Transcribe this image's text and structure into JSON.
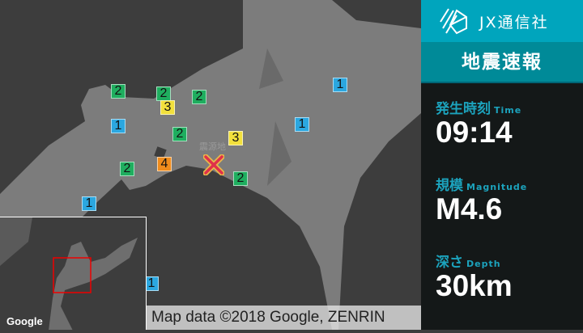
{
  "map": {
    "epicenter_label": "震源地",
    "attribution": "Map data ©2018 Google, ZENRIN",
    "google_logo": "Google",
    "intensity_colors": {
      "1": "#2ba7e0",
      "2": "#1fae5f",
      "3": "#f2e03c",
      "4": "#f08c1c"
    },
    "markers": [
      {
        "value": "2"
      },
      {
        "value": "2"
      },
      {
        "value": "3"
      },
      {
        "value": "2"
      },
      {
        "value": "1"
      },
      {
        "value": "1"
      },
      {
        "value": "2"
      },
      {
        "value": "3"
      },
      {
        "value": "1"
      },
      {
        "value": "4"
      },
      {
        "value": "2"
      },
      {
        "value": "2"
      },
      {
        "value": "1"
      },
      {
        "value": "1"
      }
    ]
  },
  "panel": {
    "brand": "JX通信社",
    "title": "地震速報",
    "time": {
      "label": "発生時刻",
      "label_en": "Time",
      "value": "09:14"
    },
    "magnitude": {
      "label": "規模",
      "label_en": "Magnitude",
      "value": "M4.6"
    },
    "depth": {
      "label": "深さ",
      "label_en": "Depth",
      "value": "30km"
    }
  }
}
